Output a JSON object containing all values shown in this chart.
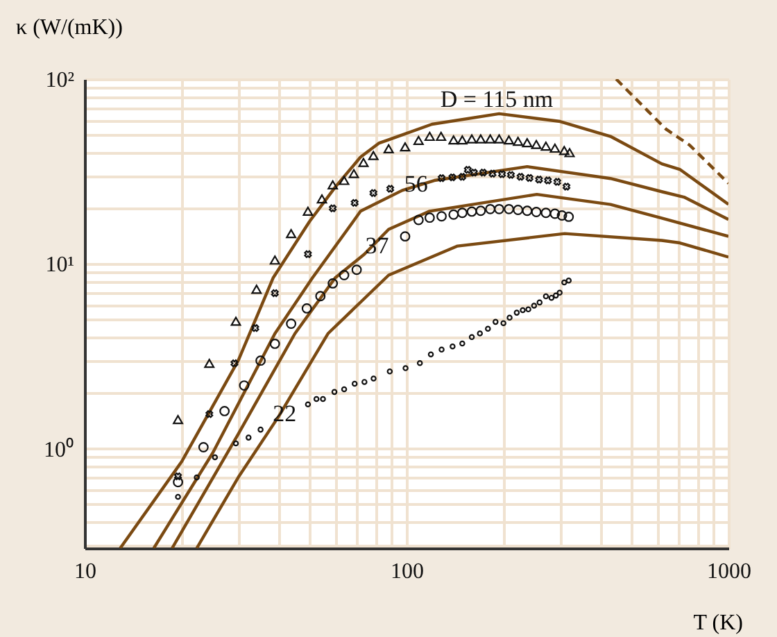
{
  "chart_data": {
    "type": "line",
    "xlabel": "T (K)",
    "ylabel": "κ (W/(mK))",
    "log": "xy",
    "grid": true,
    "xlim": [
      10,
      1000
    ],
    "ylim": [
      0.29,
      100
    ],
    "xticks": [
      10,
      {
        "value": 20,
        "label": null
      },
      {
        "value": 30,
        "label": null
      },
      {
        "value": 40,
        "label": null
      },
      {
        "value": 50,
        "label": null
      },
      {
        "value": 60,
        "label": null
      },
      {
        "value": 70,
        "label": null
      },
      {
        "value": 80,
        "label": null
      },
      {
        "value": 90,
        "label": null
      },
      100,
      {
        "value": 200,
        "label": null
      },
      {
        "value": 300,
        "label": null
      },
      {
        "value": 400,
        "label": null
      },
      {
        "value": 500,
        "label": null
      },
      {
        "value": 600,
        "label": null
      },
      {
        "value": 700,
        "label": null
      },
      {
        "value": 800,
        "label": null
      },
      {
        "value": 900,
        "label": null
      },
      1000
    ],
    "yticks": [
      {
        "value": 0.3,
        "label": null
      },
      {
        "value": 0.4,
        "label": null
      },
      {
        "value": 0.5,
        "label": null
      },
      {
        "value": 0.6,
        "label": null
      },
      {
        "value": 0.7,
        "label": null
      },
      {
        "value": 0.8,
        "label": null
      },
      {
        "value": 0.9,
        "label": null
      },
      {
        "value": 1,
        "label": "10⁰"
      },
      {
        "value": 2,
        "label": null
      },
      {
        "value": 3,
        "label": null
      },
      {
        "value": 4,
        "label": null
      },
      {
        "value": 5,
        "label": null
      },
      {
        "value": 6,
        "label": null
      },
      {
        "value": 7,
        "label": null
      },
      {
        "value": 8,
        "label": null
      },
      {
        "value": 9,
        "label": null
      },
      {
        "value": 10,
        "label": "10¹"
      },
      {
        "value": 20,
        "label": null
      },
      {
        "value": 30,
        "label": null
      },
      {
        "value": 40,
        "label": null
      },
      {
        "value": 50,
        "label": null
      },
      {
        "value": 60,
        "label": null
      },
      {
        "value": 70,
        "label": null
      },
      {
        "value": 80,
        "label": null
      },
      {
        "value": 90,
        "label": null
      },
      {
        "value": 100,
        "label": "10²"
      }
    ],
    "series": [
      {
        "color": "#7b4a12",
        "line_style": "solid",
        "x": [
          12.9,
          20,
          30,
          38.5,
          50,
          60,
          72,
          82,
          88,
          120,
          194,
          300,
          430,
          621,
          706,
          1000
        ],
        "values": [
          0.29,
          0.85,
          3.0,
          8.4,
          17,
          26,
          37.9,
          45,
          47,
          57,
          65,
          59,
          49,
          34.8,
          32.5,
          21
        ]
      },
      {
        "color": "#7b4a12",
        "line_style": "solid",
        "x": [
          16.4,
          25,
          39,
          51,
          72,
          97,
          122,
          237,
          430,
          621,
          728,
          1000
        ],
        "values": [
          0.29,
          0.95,
          4.2,
          8.4,
          19.3,
          25,
          28.3,
          33.6,
          29,
          24.6,
          23,
          17.4
        ]
      },
      {
        "color": "#7b4a12",
        "line_style": "solid",
        "x": [
          18.7,
          30,
          45,
          60,
          74,
          88,
          118,
          254,
          430,
          621,
          1000
        ],
        "values": [
          0.29,
          1.2,
          4.2,
          8.4,
          11.3,
          15.4,
          19.3,
          23.8,
          21,
          17.7,
          14.1
        ]
      },
      {
        "color": "#7b4a12",
        "line_style": "solid",
        "x": [
          22.3,
          30,
          40,
          57,
          88,
          144,
          310,
          621,
          706,
          1000
        ],
        "values": [
          0.29,
          0.7,
          1.49,
          4.2,
          8.7,
          12.5,
          14.6,
          13.4,
          13,
          10.9
        ]
      },
      {
        "color": "#7b4a12",
        "line_style": "dashed",
        "x": [
          448,
          563,
          640,
          757,
          1000
        ],
        "values": [
          100,
          67,
          53.6,
          44,
          27.3
        ]
      },
      {
        "type": "scatter",
        "color": "#111111",
        "marker": "triangle",
        "x": [
          19.5,
          24.4,
          29.5,
          34.2,
          39,
          43.8,
          49.4,
          54.6,
          59,
          64,
          68.6,
          73.5,
          78.9,
          88,
          99,
          109,
          118,
          128,
          140,
          149,
          159.5,
          170,
          182,
          194,
          208,
          222,
          237,
          253,
          271,
          289,
          309,
          321
        ],
        "values": [
          1.44,
          2.9,
          4.9,
          7.3,
          10.5,
          14.6,
          19.3,
          22.5,
          26.8,
          28.3,
          30.8,
          35.4,
          38.6,
          42,
          43,
          46.6,
          49,
          49,
          46.9,
          46.9,
          47.5,
          47.5,
          47.5,
          47.5,
          46.9,
          46.1,
          45.3,
          44.3,
          43.4,
          42.3,
          41.1,
          40
        ]
      },
      {
        "type": "scatter",
        "color": "#111111",
        "marker": "cross",
        "x": [
          19.5,
          24.4,
          29.2,
          33.9,
          39,
          49.4,
          59,
          69,
          78.9,
          89,
          128.5,
          138.8,
          149,
          155,
          162,
          173,
          185,
          198,
          211,
          226,
          241,
          258,
          275,
          294,
          314
        ],
        "values": [
          0.71,
          1.54,
          2.9,
          4.5,
          6.95,
          11.3,
          20,
          21.4,
          24.2,
          25.5,
          29.1,
          29.4,
          29.6,
          32.3,
          31.2,
          31.2,
          30.8,
          30.6,
          30.3,
          29.6,
          29.2,
          28.6,
          28.3,
          27.8,
          26.2
        ]
      },
      {
        "type": "scatter",
        "color": "#111111",
        "marker": "circle",
        "x": [
          19.5,
          23.4,
          27.2,
          31.3,
          35.2,
          39,
          43.8,
          49,
          54,
          59,
          64,
          70,
          99,
          109,
          118,
          128.5,
          140,
          149,
          159.5,
          170,
          182,
          194,
          208,
          222,
          237,
          253,
          271,
          289,
          304,
          319
        ],
        "values": [
          0.66,
          1.02,
          1.6,
          2.2,
          3,
          3.7,
          4.75,
          5.75,
          6.7,
          7.85,
          8.7,
          9.3,
          14.1,
          17.3,
          17.8,
          18.1,
          18.5,
          18.9,
          19.2,
          19.4,
          19.8,
          19.8,
          19.8,
          19.6,
          19.4,
          19.1,
          18.9,
          18.7,
          18.3,
          18.0
        ]
      },
      {
        "type": "scatter",
        "color": "#111111",
        "marker": "diamond",
        "x": [
          19.5,
          22.3,
          25.4,
          29.5,
          32.3,
          35.2,
          49.4,
          52.5,
          55,
          59.7,
          64,
          69,
          74,
          79,
          88.7,
          99.3,
          110,
          119,
          128.5,
          139,
          149,
          159.5,
          169,
          179,
          189,
          200,
          209,
          220,
          229.6,
          239,
          249,
          259,
          271,
          282,
          291,
          299,
          309,
          319
        ],
        "values": [
          0.55,
          0.7,
          0.9,
          1.07,
          1.15,
          1.27,
          1.74,
          1.86,
          1.86,
          2.03,
          2.1,
          2.25,
          2.3,
          2.4,
          2.62,
          2.73,
          2.91,
          3.24,
          3.44,
          3.58,
          3.71,
          4.02,
          4.21,
          4.46,
          4.86,
          4.78,
          5.12,
          5.45,
          5.62,
          5.68,
          5.95,
          6.19,
          6.68,
          6.56,
          6.75,
          6.99,
          7.94,
          8.13
        ]
      }
    ],
    "annotations": [
      "D = 115 nm",
      {
        "text": "56",
        "x": 107,
        "y": 26.9
      },
      {
        "text": "37",
        "x": 81,
        "y": 12.5
      },
      {
        "text": "22",
        "x": 41.8,
        "y": 1.54
      }
    ]
  }
}
